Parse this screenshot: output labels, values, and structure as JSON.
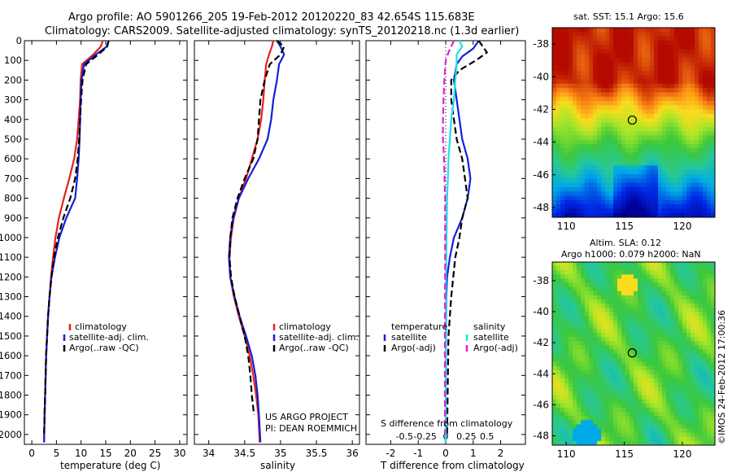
{
  "title": {
    "line1": "Argo profile: AO 5901266_205 19-Feb-2012 20120220_83 42.654S 115.683E",
    "line2": "Climatology: CARS2009. Satellite-adjusted climatology: synTS_20120218.nc (1.3d earlier)"
  },
  "watermark": "US ARGO PROJECT",
  "pi": "PI: DEAN ROEMMICH",
  "timestamp": "©IMOS 24-Feb-2012 17:00:36",
  "sst_map_title": "sat. SST: 15.1  Argo: 15.6",
  "sla_map_title1": "Altim. SLA: 0.12",
  "sla_map_title2": "Argo h1000: 0.079  h2000: NaN",
  "colors": {
    "climatology": "#e8201c",
    "satellite": "#1220d8",
    "argo": "#000000",
    "satellite_salinity": "#20e0e8",
    "argo_salinity_diff": "#e020d8"
  },
  "chart_data": [
    {
      "type": "line",
      "name": "temperature",
      "xlabel": "temperature (deg C)",
      "ylim": [
        2050,
        0
      ],
      "xlim": [
        -1.5,
        31.5
      ],
      "xticks": [
        0,
        5,
        10,
        15,
        20,
        25,
        30
      ],
      "yticks": [
        0,
        100,
        200,
        300,
        400,
        500,
        600,
        700,
        800,
        900,
        1000,
        1100,
        1200,
        1300,
        1400,
        1500,
        1600,
        1700,
        1800,
        1900,
        2000
      ],
      "legend": [
        "climatology",
        "satellite-adj. clim.",
        "Argo(..raw -QC)"
      ],
      "series": [
        {
          "name": "climatology",
          "color": "#e8201c",
          "style": "solid",
          "x": [
            14.4,
            14.0,
            12.5,
            10.2,
            9.9,
            9.8,
            9.5,
            9.2,
            8.6,
            7.6,
            6.5,
            5.5,
            4.8,
            4.3,
            3.9,
            3.6,
            3.3,
            3.1,
            2.9,
            2.8,
            2.7,
            2.6,
            2.5
          ],
          "y": [
            0,
            30,
            70,
            120,
            200,
            300,
            400,
            500,
            600,
            700,
            800,
            900,
            1000,
            1100,
            1200,
            1300,
            1400,
            1500,
            1600,
            1700,
            1800,
            1900,
            2040
          ]
        },
        {
          "name": "satellite-adj. clim.",
          "color": "#1220d8",
          "style": "solid",
          "x": [
            15.6,
            15.2,
            13.0,
            10.6,
            10.1,
            9.9,
            9.8,
            9.7,
            9.5,
            9.2,
            8.8,
            7.0,
            5.6,
            4.7,
            4.0,
            3.6,
            3.3,
            3.1,
            2.9,
            2.8,
            2.7,
            2.6,
            2.5
          ],
          "y": [
            0,
            30,
            70,
            120,
            200,
            300,
            400,
            500,
            600,
            700,
            800,
            900,
            1000,
            1100,
            1200,
            1300,
            1400,
            1500,
            1600,
            1700,
            1800,
            1900,
            2040
          ]
        },
        {
          "name": "Argo(..raw -QC)",
          "color": "#000000",
          "style": "dashed",
          "x": [
            15.6,
            15.3,
            13.5,
            11.0,
            10.3,
            10.0,
            9.8,
            9.6,
            9.3,
            8.8,
            7.8,
            6.4,
            5.3,
            4.5,
            4.0,
            3.6,
            3.3,
            3.1,
            2.9,
            2.8,
            2.7,
            2.6,
            2.5
          ],
          "y": [
            0,
            30,
            70,
            120,
            200,
            300,
            400,
            500,
            600,
            700,
            800,
            900,
            1000,
            1100,
            1200,
            1300,
            1400,
            1500,
            1600,
            1700,
            1800,
            1900,
            2000
          ]
        }
      ]
    },
    {
      "type": "line",
      "name": "salinity",
      "xlabel": "salinity",
      "ylim": [
        2050,
        0
      ],
      "xlim": [
        33.8,
        36.1
      ],
      "xticks": [
        34,
        34.5,
        35,
        35.5,
        36
      ],
      "legend": [
        "climatology",
        "satellite-adj. clim.",
        "Argo(..raw -QC)"
      ],
      "series": [
        {
          "name": "climatology",
          "color": "#e8201c",
          "style": "solid",
          "x": [
            34.9,
            34.88,
            34.84,
            34.8,
            34.78,
            34.76,
            34.73,
            34.68,
            34.6,
            34.52,
            34.42,
            34.35,
            34.31,
            34.29,
            34.3,
            34.35,
            34.42,
            34.5,
            34.57,
            34.62,
            34.66,
            34.69,
            34.71
          ],
          "y": [
            0,
            30,
            70,
            120,
            200,
            300,
            400,
            500,
            600,
            700,
            800,
            900,
            1000,
            1100,
            1200,
            1300,
            1400,
            1500,
            1600,
            1700,
            1800,
            1900,
            2040
          ]
        },
        {
          "name": "satellite-adj. clim.",
          "color": "#1220d8",
          "style": "solid",
          "x": [
            34.95,
            35.0,
            35.05,
            34.98,
            34.95,
            34.9,
            34.87,
            34.82,
            34.7,
            34.55,
            34.42,
            34.34,
            34.3,
            34.28,
            34.3,
            34.36,
            34.43,
            34.52,
            34.6,
            34.65,
            34.68,
            34.7,
            34.72
          ],
          "y": [
            0,
            30,
            70,
            120,
            200,
            300,
            400,
            500,
            600,
            700,
            800,
            900,
            1000,
            1100,
            1200,
            1300,
            1400,
            1500,
            1600,
            1700,
            1800,
            1900,
            2040
          ]
        },
        {
          "name": "Argo(..raw -QC)",
          "color": "#000000",
          "style": "dashed",
          "x": [
            34.95,
            35.05,
            35.0,
            34.85,
            34.78,
            34.72,
            34.7,
            34.68,
            34.62,
            34.5,
            34.4,
            34.33,
            34.3,
            34.29,
            34.31,
            34.36,
            34.43,
            34.5,
            34.55,
            34.58,
            34.6,
            34.63
          ],
          "y": [
            0,
            30,
            70,
            120,
            200,
            300,
            400,
            500,
            600,
            700,
            800,
            900,
            1000,
            1100,
            1200,
            1300,
            1400,
            1500,
            1600,
            1700,
            1800,
            1900
          ]
        }
      ]
    },
    {
      "type": "line",
      "name": "difference from climatology",
      "xlabel": "T difference from climatology",
      "xlabel_top": "S difference from climatology",
      "ylim": [
        2050,
        0
      ],
      "xlim": [
        -2.9,
        2.9
      ],
      "xticks": [
        -2,
        -1,
        0,
        1,
        2
      ],
      "xticklabels_top": [
        "-0.5",
        "-0.25",
        "0",
        "0.25",
        "0.5"
      ],
      "legend_titles": [
        "temperature",
        "salinity"
      ],
      "legend": [
        "satellite",
        "Argo(-adj)",
        "satellite",
        "Argo(-adj)"
      ],
      "series": [
        {
          "name": "satellite",
          "color": "#1220d8",
          "style": "solid",
          "x": [
            1.2,
            1.0,
            0.6,
            0.4,
            0.3,
            0.4,
            0.5,
            0.6,
            0.8,
            0.9,
            0.8,
            0.6,
            0.3,
            0.15,
            0.05,
            0.02,
            0.01,
            0.0
          ],
          "y": [
            0,
            40,
            80,
            120,
            200,
            300,
            400,
            500,
            600,
            700,
            800,
            900,
            1000,
            1100,
            1200,
            1300,
            1500,
            2040
          ]
        },
        {
          "name": "Argo(-adj)",
          "color": "#000000",
          "style": "dashed",
          "x": [
            1.2,
            1.5,
            1.1,
            0.5,
            0.2,
            0.2,
            0.3,
            0.4,
            0.6,
            0.7,
            0.8,
            0.6,
            0.5,
            0.35,
            0.2,
            0.1,
            0.05
          ],
          "y": [
            0,
            60,
            100,
            150,
            200,
            300,
            400,
            500,
            600,
            700,
            800,
            900,
            1000,
            1100,
            1300,
            1500,
            2000
          ]
        },
        {
          "name": "satellite",
          "color": "#20e0e8",
          "style": "solid",
          "x": [
            0.5,
            0.6,
            0.4,
            0.4,
            0.35,
            0.3,
            0.2,
            0.15,
            0.1,
            0.08,
            0.05,
            0.04,
            0.03,
            0.02,
            0.01,
            0.0
          ],
          "y": [
            0,
            30,
            70,
            120,
            200,
            300,
            400,
            500,
            600,
            700,
            800,
            900,
            1000,
            1100,
            1200,
            2040
          ]
        },
        {
          "name": "Argo(-adj)",
          "color": "#e020d8",
          "style": "dashed",
          "x": [
            0.3,
            0.1,
            0.0,
            -0.05,
            -0.08,
            -0.1,
            -0.1,
            -0.06,
            -0.04,
            -0.02,
            -0.02,
            -0.02,
            -0.03,
            -0.03,
            -0.03
          ],
          "y": [
            0,
            60,
            100,
            200,
            300,
            400,
            500,
            600,
            700,
            800,
            1000,
            1200,
            1400,
            1700,
            2000
          ]
        }
      ]
    }
  ],
  "maps": [
    {
      "name": "sst",
      "xticks": [
        110,
        115,
        120
      ],
      "yticks": [
        -38,
        -40,
        -42,
        -44,
        -46,
        -48
      ],
      "marker": [
        115.683,
        -42.654
      ],
      "xlim": [
        108.8,
        122.8
      ],
      "ylim": [
        -48.6,
        -37.0
      ]
    },
    {
      "name": "sla",
      "xticks": [
        110,
        115,
        120
      ],
      "yticks": [
        -38,
        -40,
        -42,
        -44,
        -46,
        -48
      ],
      "marker": [
        115.683,
        -42.654
      ],
      "xlim": [
        108.8,
        122.8
      ],
      "ylim": [
        -48.6,
        -36.8
      ]
    }
  ]
}
